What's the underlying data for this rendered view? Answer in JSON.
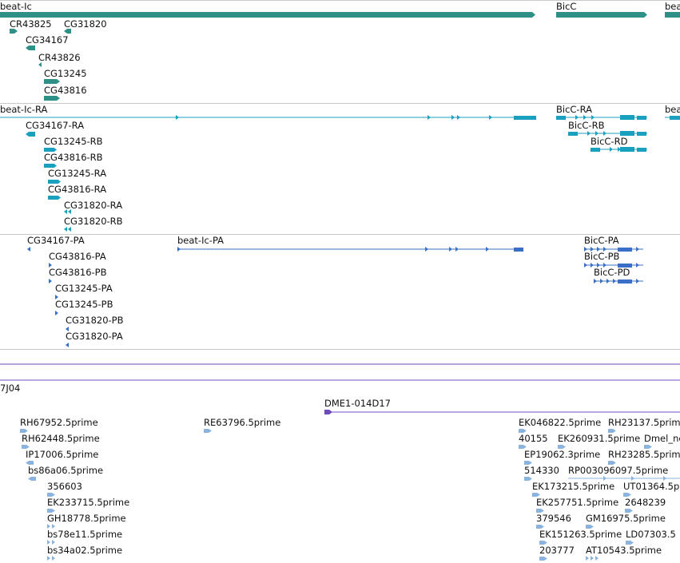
{
  "colors": {
    "gene": "#2e9087",
    "transcript": "#1aa0bf",
    "protein": "#3a6fc8",
    "clone": "#6c4bbf",
    "est": "#8ab4dd",
    "separator": "#c9c9c9"
  },
  "gene_track": {
    "labels": [
      "beat-Ic",
      "CR43825",
      "CG31820",
      "CG34167",
      "CR43826",
      "CG13245",
      "CG43816",
      "BicC",
      "beat"
    ]
  },
  "transcript_track": {
    "labels": [
      "beat-Ic-RA",
      "CG34167-RA",
      "CG13245-RB",
      "CG43816-RB",
      "CG13245-RA",
      "CG43816-RA",
      "CG31820-RA",
      "CG31820-RB",
      "BicC-RA",
      "BicC-RB",
      "BicC-RD",
      "bea"
    ]
  },
  "protein_track": {
    "labels": [
      "CG34167-PA",
      "beat-Ic-PA",
      "CG43816-PA",
      "CG43816-PB",
      "CG13245-PA",
      "CG13245-PB",
      "CG31820-PB",
      "CG31820-PA",
      "BicC-PA",
      "BicC-PB",
      "BicC-PD"
    ]
  },
  "clone_track": {
    "labels": [
      "7J04",
      "DME1-014D17"
    ]
  },
  "est_track": {
    "labels": [
      "RH67952.5prime",
      "RH62448.5prime",
      "IP17006.5prime",
      "bs86a06.5prime",
      "356603",
      "EK233715.5prime",
      "GH18778.5prime",
      "bs78e11.5prime",
      "bs34a02.5prime",
      "RE63796.5prime",
      "EK046822.5prime",
      "RH23137.5prime",
      "40155",
      "EK260931.5prime",
      "Dmel_ne",
      "EP19062.3prime",
      "RH23285.5prime",
      "514330",
      "RP003096097.5prime",
      "EK173215.5prime",
      "UT01364.5p",
      "EK257751.5prime",
      "2648239",
      "379546",
      "GM16975.5prime",
      "EK151263.5prime",
      "LD07303.5",
      "203777",
      "AT10543.5prime"
    ]
  }
}
